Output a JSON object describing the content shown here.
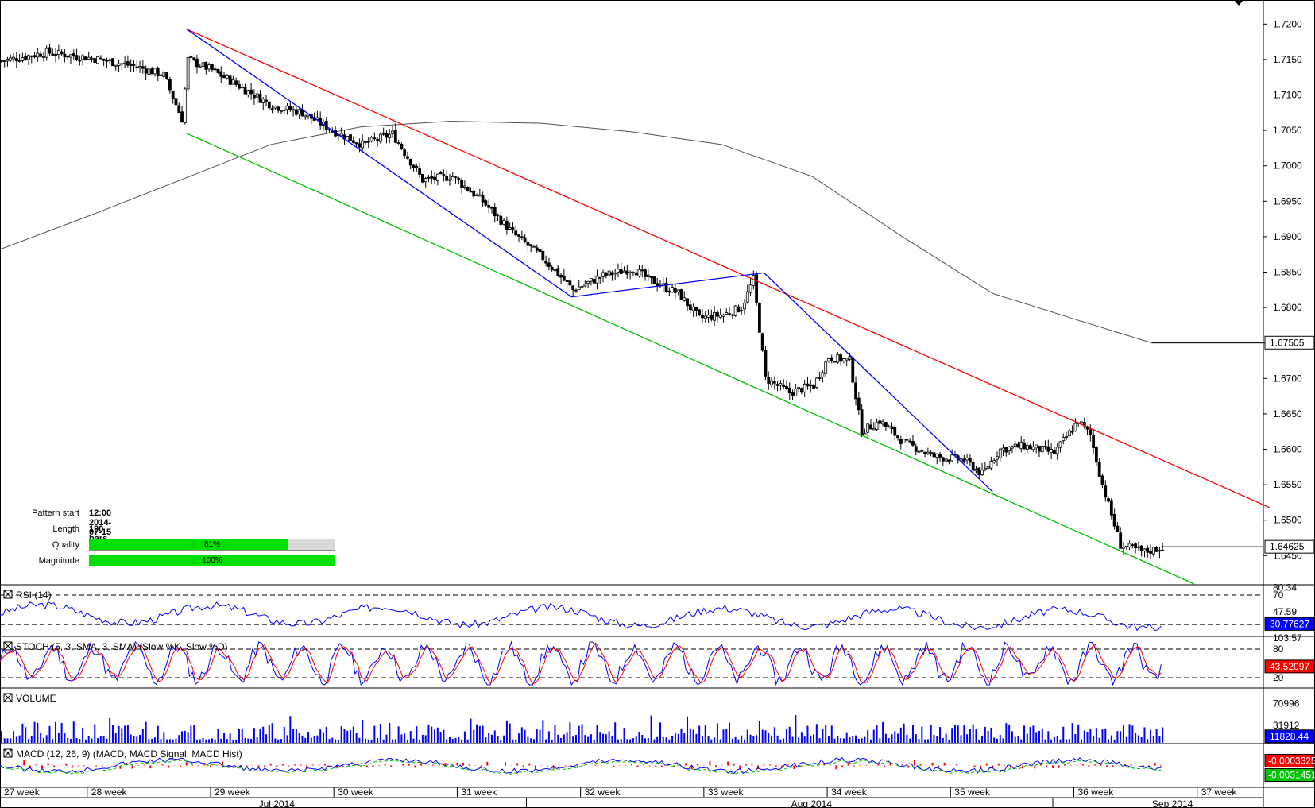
{
  "chart_data": {
    "type": "candlestick",
    "instrument_scale": {
      "y_ticks": [
        "1.7200",
        "1.7150",
        "1.7100",
        "1.7050",
        "1.7000",
        "1.6950",
        "1.6900",
        "1.6850",
        "1.6800",
        "1.6750",
        "1.6700",
        "1.6650",
        "1.6600",
        "1.6550",
        "1.6500",
        "1.6450"
      ],
      "ylim": [
        1.641,
        1.7225
      ],
      "current_price": "1.64625",
      "ma_value": "1.67505"
    },
    "close_path": [
      [
        0,
        1.7148
      ],
      [
        15,
        1.716
      ],
      [
        30,
        1.7152
      ],
      [
        45,
        1.714
      ],
      [
        54,
        1.7128
      ],
      [
        60,
        1.7066
      ],
      [
        62,
        1.715
      ],
      [
        70,
        1.7135
      ],
      [
        80,
        1.711
      ],
      [
        90,
        1.7085
      ],
      [
        100,
        1.7075
      ],
      [
        110,
        1.705
      ],
      [
        120,
        1.703
      ],
      [
        130,
        1.7045
      ],
      [
        140,
        1.698
      ],
      [
        150,
        1.6985
      ],
      [
        160,
        1.695
      ],
      [
        170,
        1.6905
      ],
      [
        180,
        1.687
      ],
      [
        190,
        1.6825
      ],
      [
        200,
        1.6845
      ],
      [
        210,
        1.6855
      ],
      [
        215,
        1.684
      ],
      [
        225,
        1.682
      ],
      [
        232,
        1.6785
      ],
      [
        240,
        1.679
      ],
      [
        246,
        1.68
      ],
      [
        250,
        1.684
      ],
      [
        254,
        1.67
      ],
      [
        262,
        1.668
      ],
      [
        270,
        1.669
      ],
      [
        275,
        1.673
      ],
      [
        282,
        1.6725
      ],
      [
        286,
        1.6625
      ],
      [
        292,
        1.664
      ],
      [
        300,
        1.661
      ],
      [
        310,
        1.659
      ],
      [
        320,
        1.6585
      ],
      [
        326,
        1.6565
      ],
      [
        332,
        1.66
      ],
      [
        340,
        1.6605
      ],
      [
        350,
        1.6595
      ],
      [
        358,
        1.664
      ],
      [
        362,
        1.662
      ],
      [
        366,
        1.655
      ],
      [
        372,
        1.6465
      ],
      [
        380,
        1.6455
      ],
      [
        386,
        1.6462
      ]
    ],
    "trend_lines": [
      {
        "color": "#ff0000",
        "from": [
          62,
          1.7193
        ],
        "to": [
          422,
          1.6518
        ]
      },
      {
        "color": "#00c000",
        "from": [
          62,
          1.7046
        ],
        "to": [
          397,
          1.641
        ]
      },
      {
        "color": "#0000ff",
        "points": [
          [
            62,
            1.7193
          ],
          [
            190,
            1.6815
          ],
          [
            254,
            1.6849
          ],
          [
            330,
            1.654
          ]
        ]
      }
    ],
    "moving_average": [
      [
        0,
        1.6882
      ],
      [
        30,
        1.693
      ],
      [
        60,
        1.698
      ],
      [
        90,
        1.703
      ],
      [
        120,
        1.7055
      ],
      [
        150,
        1.7063
      ],
      [
        180,
        1.706
      ],
      [
        210,
        1.7048
      ],
      [
        240,
        1.703
      ],
      [
        270,
        1.6985
      ],
      [
        300,
        1.69
      ],
      [
        330,
        1.682
      ],
      [
        360,
        1.678
      ],
      [
        383,
        1.675
      ],
      [
        420,
        1.675
      ]
    ],
    "x_labels": [
      {
        "bar": 0,
        "text": "27 week"
      },
      {
        "bar": 29,
        "text": "28 week"
      },
      {
        "bar": 70,
        "text": "29 week"
      },
      {
        "bar": 111,
        "text": "30 week"
      },
      {
        "bar": 152,
        "text": "31 week"
      },
      {
        "bar": 193,
        "text": "32 week"
      },
      {
        "bar": 234,
        "text": "33 week"
      },
      {
        "bar": 275,
        "text": "34 week"
      },
      {
        "bar": 316,
        "text": "35 week"
      },
      {
        "bar": 357,
        "text": "36 week"
      },
      {
        "bar": 398,
        "text": "37 week"
      }
    ],
    "month_labels": [
      {
        "bar": 86,
        "text": "Jul 2014"
      },
      {
        "bar": 263,
        "text": "Aug 2014"
      },
      {
        "bar": 383,
        "text": "Sep 2014"
      }
    ],
    "rsi": {
      "label": "RSI (14)",
      "ticks": [
        "80.34",
        "70",
        "47.59",
        "30"
      ],
      "value": "30.77627",
      "levels": [
        70,
        30
      ],
      "range": [
        15,
        83
      ]
    },
    "stoch": {
      "label": "STOCH (5, 3, SMA, 3, SMA) (Slow %K, Slow %D)",
      "ticks": [
        "103.57",
        "80",
        "20"
      ],
      "value": "43.52097",
      "levels": [
        80,
        20
      ],
      "range": [
        0,
        105
      ]
    },
    "volume": {
      "label": "VOLUME",
      "ticks": [
        "70996",
        "31912"
      ],
      "value": "11828.44",
      "max": 72000
    },
    "macd": {
      "label": "MACD (12, 26, 9) (MACD, MACD Signal, MACD Hist)",
      "value_signal": "-0.0003325",
      "value_macd": "-0.0031451"
    },
    "x_unit": "bars (1 bar = 2 hours)"
  },
  "pattern_info": {
    "pattern_start_label": "Pattern start",
    "pattern_start_value": "12:00 2014-07-15",
    "length_label": "Length",
    "length_value": "190 bars",
    "quality_label": "Quality",
    "quality_value": 0.81,
    "quality_text": "81%",
    "magnitude_label": "Magnitude",
    "magnitude_value": 1.0,
    "magnitude_text": "100%"
  },
  "colors": {
    "resistance": "#ff0000",
    "support": "#00c000",
    "zigzag": "#0000ff",
    "ma": "#505050",
    "price_tag": "#ffffff",
    "rsi_tag": "#0000ff",
    "macd_tag": "#ff0000"
  }
}
